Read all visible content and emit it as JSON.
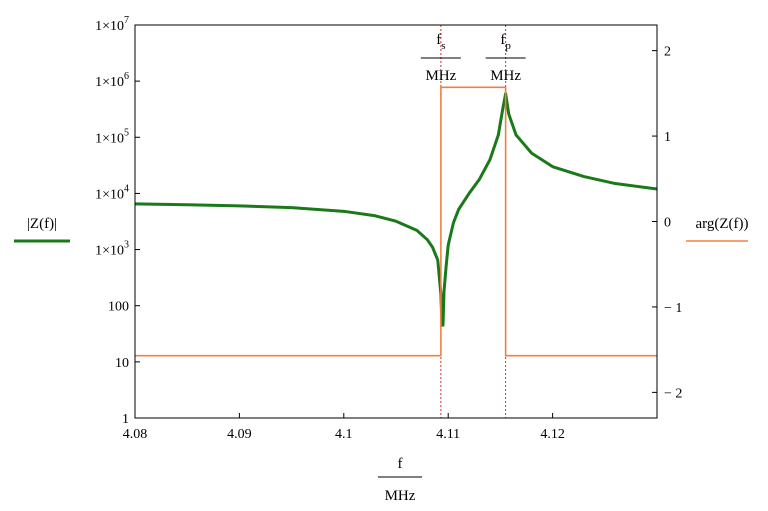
{
  "chart_data": {
    "type": "line",
    "x_axis": {
      "label_numerator": "f",
      "label_denominator": "MHz",
      "range": [
        4.08,
        4.13
      ],
      "ticks": [
        {
          "value": 4.08,
          "label": "4.08"
        },
        {
          "value": 4.09,
          "label": "4.09"
        },
        {
          "value": 4.1,
          "label": "4.1"
        },
        {
          "value": 4.11,
          "label": "4.11"
        },
        {
          "value": 4.12,
          "label": "4.12"
        }
      ]
    },
    "y_axis_left": {
      "label": "|Z(f)|",
      "scale": "log",
      "range": [
        1,
        10000000
      ],
      "ticks": [
        {
          "value": 1,
          "label": "1",
          "mantissa": "",
          "exp": ""
        },
        {
          "value": 10,
          "label": "10",
          "mantissa": "",
          "exp": ""
        },
        {
          "value": 100,
          "label": "100",
          "mantissa": "",
          "exp": ""
        },
        {
          "value": 1000,
          "label": "",
          "mantissa": "1×10",
          "exp": "3"
        },
        {
          "value": 10000,
          "label": "",
          "mantissa": "1×10",
          "exp": "4"
        },
        {
          "value": 100000,
          "label": "",
          "mantissa": "1×10",
          "exp": "5"
        },
        {
          "value": 1000000,
          "label": "",
          "mantissa": "1×10",
          "exp": "6"
        },
        {
          "value": 10000000,
          "label": "",
          "mantissa": "1×10",
          "exp": "7"
        }
      ]
    },
    "y_axis_right": {
      "label": "arg(Z(f))",
      "scale": "linear",
      "range": [
        -2.3,
        2.3
      ],
      "ticks": [
        {
          "value": 2,
          "label": "2"
        },
        {
          "value": 1,
          "label": "1"
        },
        {
          "value": 0,
          "label": "0"
        },
        {
          "value": -1,
          "label": "− 1"
        },
        {
          "value": -2,
          "label": "− 2"
        }
      ]
    },
    "markers": [
      {
        "name_base": "f",
        "name_sub": "s",
        "unit": "MHz",
        "x": 4.1093
      },
      {
        "name_base": "f",
        "name_sub": "p",
        "unit": "MHz",
        "x": 4.1155
      }
    ],
    "series": [
      {
        "label": "|Z(f)|",
        "axis": "left",
        "color": "#1a7a1a",
        "points": [
          [
            4.08,
            6500
          ],
          [
            4.085,
            6300
          ],
          [
            4.09,
            6000
          ],
          [
            4.095,
            5600
          ],
          [
            4.1,
            4800
          ],
          [
            4.103,
            4000
          ],
          [
            4.105,
            3200
          ],
          [
            4.107,
            2200
          ],
          [
            4.108,
            1500
          ],
          [
            4.1085,
            1100
          ],
          [
            4.109,
            650
          ],
          [
            4.1093,
            160
          ],
          [
            4.1094,
            45
          ],
          [
            4.1095,
            45
          ],
          [
            4.1096,
            180
          ],
          [
            4.1098,
            500
          ],
          [
            4.11,
            1200
          ],
          [
            4.1105,
            3000
          ],
          [
            4.111,
            5200
          ],
          [
            4.112,
            10000
          ],
          [
            4.113,
            18000
          ],
          [
            4.114,
            40000
          ],
          [
            4.1148,
            110000
          ],
          [
            4.1152,
            300000
          ],
          [
            4.1155,
            600000
          ],
          [
            4.1158,
            260000
          ],
          [
            4.1165,
            110000
          ],
          [
            4.118,
            52000
          ],
          [
            4.12,
            30000
          ],
          [
            4.123,
            20000
          ],
          [
            4.126,
            15000
          ],
          [
            4.13,
            12000
          ]
        ]
      },
      {
        "label": "arg(Z(f))",
        "axis": "right",
        "color": "#f08040",
        "points": [
          [
            4.08,
            -1.5708
          ],
          [
            4.1093,
            -1.5708
          ],
          [
            4.1093,
            1.5708
          ],
          [
            4.1155,
            1.5708
          ],
          [
            4.1155,
            -1.5708
          ],
          [
            4.13,
            -1.5708
          ]
        ]
      }
    ]
  }
}
